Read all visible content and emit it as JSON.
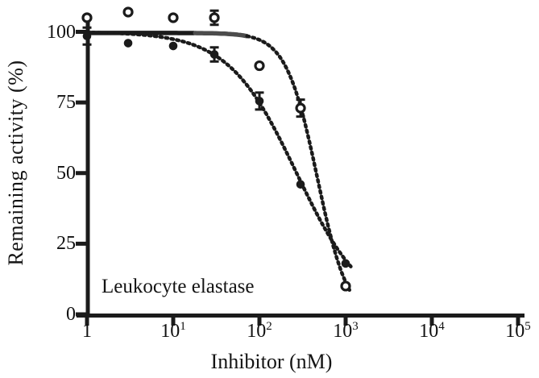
{
  "colors": {
    "ink": "#1b1b1b",
    "grey_line": "#4c4c4c",
    "background": "#ffffff",
    "marker_fill_open": "#ffffff"
  },
  "chart_data": {
    "type": "scatter",
    "title": "",
    "annotation": "Leukocyte elastase",
    "xlabel": "Inhibitor (nM)",
    "ylabel": "Remaining activity (%)",
    "x_scale": "log10",
    "x_range": [
      1,
      100000
    ],
    "y_range": [
      0,
      108
    ],
    "grid": false,
    "legend": "none",
    "x_ticks": [
      {
        "t": "1",
        "e": ""
      },
      {
        "t": "10",
        "e": "1"
      },
      {
        "t": "10",
        "e": "2"
      },
      {
        "t": "10",
        "e": "3"
      },
      {
        "t": "10",
        "e": "4"
      },
      {
        "t": "10",
        "e": "5"
      }
    ],
    "y_ticks": [
      0,
      25,
      50,
      75,
      100
    ],
    "series": [
      {
        "name": "open-circles",
        "marker": "open-circle",
        "points": [
          {
            "x": 1,
            "y": 105
          },
          {
            "x": 3,
            "y": 107
          },
          {
            "x": 10,
            "y": 105
          },
          {
            "x": 30,
            "y": 105,
            "err": 2.5
          },
          {
            "x": 100,
            "y": 88
          },
          {
            "x": 300,
            "y": 73,
            "err": 3
          },
          {
            "x": 1000,
            "y": 10
          }
        ],
        "fit": {
          "top": 99.6,
          "bottom": -3,
          "ic50": 470,
          "hill": 2.4,
          "x_start": 1,
          "x_end": 1150,
          "solid_black_to": 18,
          "solid_grey_to": 72
        }
      },
      {
        "name": "filled-circles",
        "marker": "filled-circle",
        "points": [
          {
            "x": 1,
            "y": 98.5,
            "err": 3
          },
          {
            "x": 3,
            "y": 96
          },
          {
            "x": 10,
            "y": 95
          },
          {
            "x": 30,
            "y": 92,
            "err": 2.5
          },
          {
            "x": 100,
            "y": 75.5,
            "err": 3
          },
          {
            "x": 300,
            "y": 46
          },
          {
            "x": 1000,
            "y": 18
          }
        ],
        "fit": {
          "top": 100,
          "bottom": 0,
          "ic50": 270,
          "hill": 1.1,
          "x_start": 1,
          "x_end": 1200
        }
      }
    ]
  }
}
